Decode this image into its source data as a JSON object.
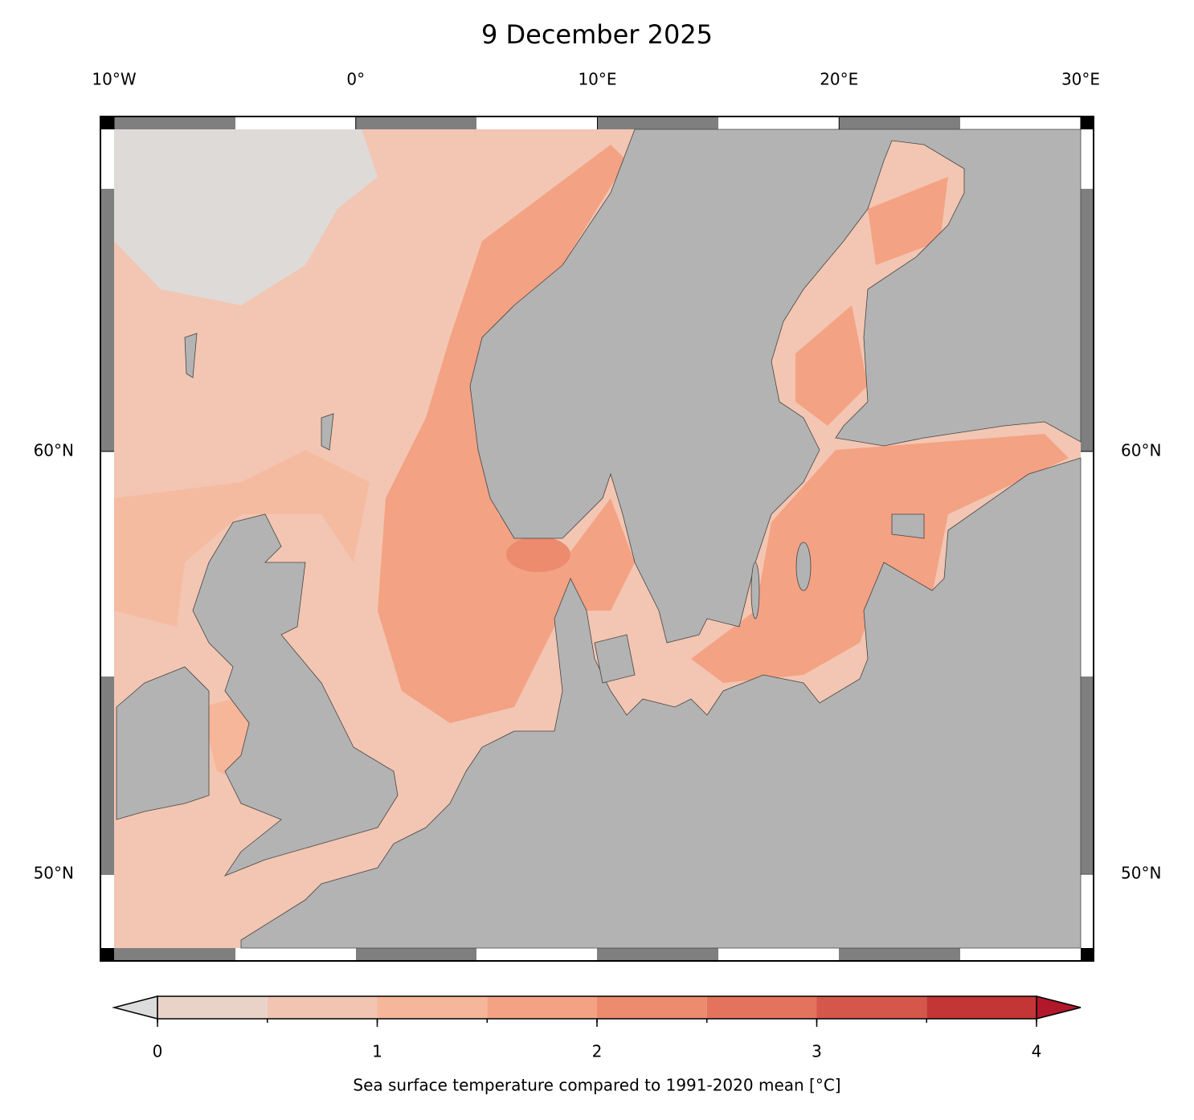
{
  "chart_data": {
    "type": "map",
    "title": "9 December 2025",
    "xlim": [
      -10,
      30
    ],
    "ylim": [
      48.25,
      67.62
    ],
    "xticks": [
      {
        "value": -10,
        "label": "10°W"
      },
      {
        "value": 0,
        "label": "0°"
      },
      {
        "value": 10,
        "label": "10°E"
      },
      {
        "value": 20,
        "label": "20°E"
      },
      {
        "value": 30,
        "label": "30°E"
      }
    ],
    "yticks": [
      {
        "value": 50,
        "label": "50°N"
      },
      {
        "value": 60,
        "label": "60°N"
      }
    ],
    "colorbar": {
      "label": "Sea surface temperature compared to 1991-2020 mean [°C]",
      "ticks": [
        0,
        1,
        2,
        3,
        4
      ],
      "levels": [
        0,
        0.5,
        1,
        1.5,
        2,
        2.5,
        3,
        3.5,
        4
      ],
      "colors": [
        "#e9d3c9",
        "#f1c5b1",
        "#f6b69a",
        "#f4a284",
        "#ec8b6e",
        "#e3735c",
        "#d5564a",
        "#c43535"
      ],
      "under_color": "#dcdcdc",
      "over_color": "#b2182b"
    }
  }
}
